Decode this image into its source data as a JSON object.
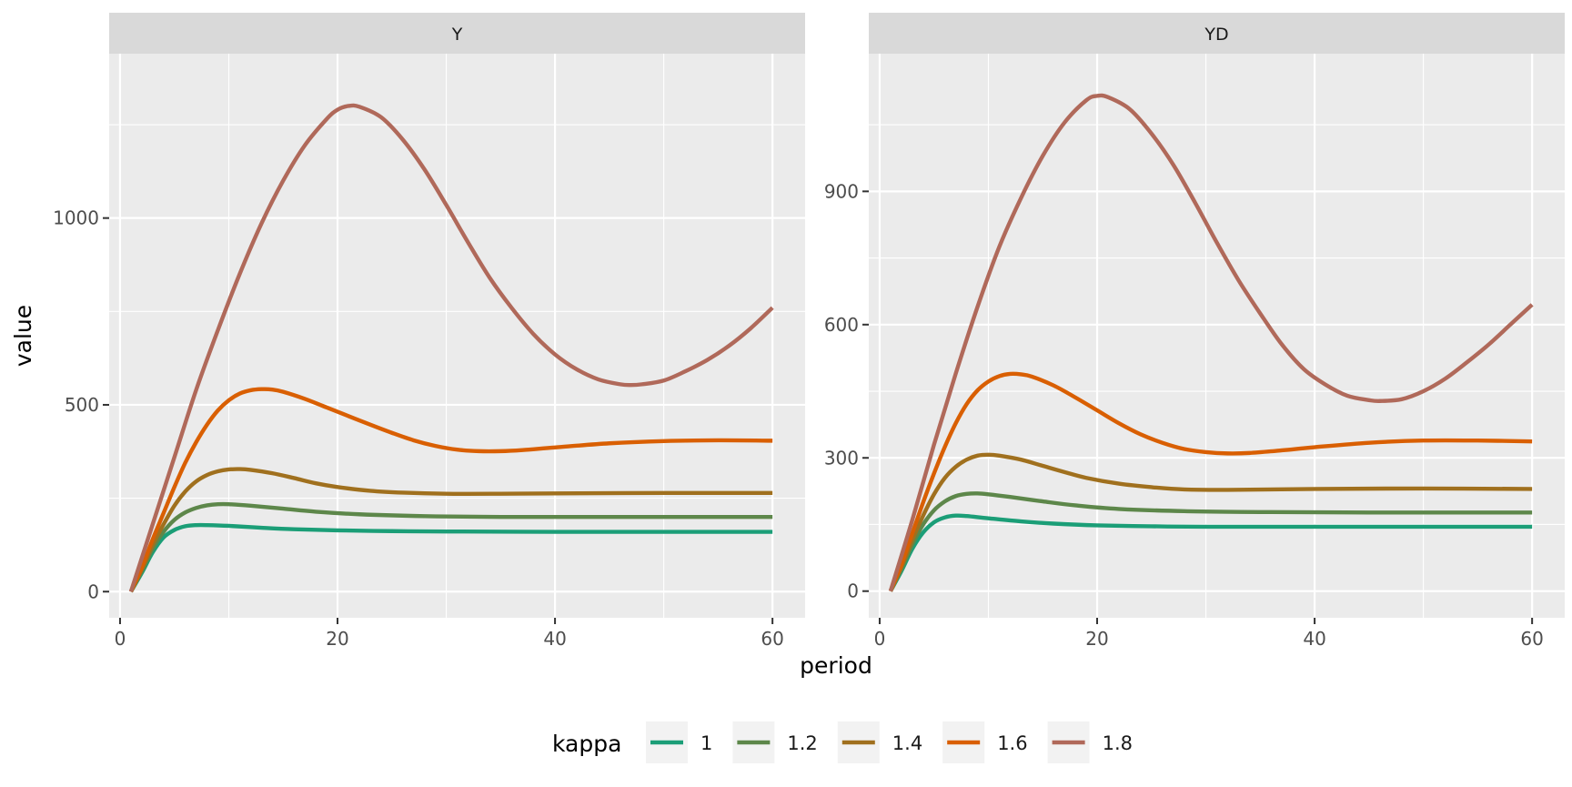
{
  "chart_data": {
    "type": "line",
    "xlabel": "period",
    "ylabel": "value",
    "legend": {
      "title": "kappa",
      "position": "bottom"
    },
    "colors": {
      "1": "#1b9e77",
      "1.2": "#5d874a",
      "1.4": "#a0701e",
      "1.6": "#d95f02",
      "1.8": "#b0695a"
    },
    "series_names": [
      "1",
      "1.2",
      "1.4",
      "1.6",
      "1.8"
    ],
    "panels": [
      {
        "strip": "Y",
        "xlim": [
          -1,
          63
        ],
        "ylim": [
          -70,
          1440
        ],
        "xticks": [
          0,
          20,
          40,
          60
        ],
        "yticks": [
          0,
          500,
          1000
        ],
        "series": [
          {
            "name": "1",
            "points": [
              [
                1,
                0
              ],
              [
                2,
                50
              ],
              [
                3,
                105
              ],
              [
                4,
                145
              ],
              [
                5,
                165
              ],
              [
                6,
                175
              ],
              [
                7,
                178
              ],
              [
                8,
                178
              ],
              [
                10,
                176
              ],
              [
                13,
                171
              ],
              [
                16,
                167
              ],
              [
                20,
                164
              ],
              [
                25,
                162
              ],
              [
                30,
                161
              ],
              [
                40,
                160
              ],
              [
                50,
                160
              ],
              [
                60,
                160
              ]
            ]
          },
          {
            "name": "1.2",
            "points": [
              [
                1,
                0
              ],
              [
                2,
                55
              ],
              [
                3,
                115
              ],
              [
                4,
                160
              ],
              [
                5,
                192
              ],
              [
                6,
                212
              ],
              [
                7,
                224
              ],
              [
                8,
                231
              ],
              [
                9,
                234
              ],
              [
                10,
                234
              ],
              [
                12,
                230
              ],
              [
                15,
                222
              ],
              [
                18,
                214
              ],
              [
                22,
                207
              ],
              [
                28,
                202
              ],
              [
                35,
                200
              ],
              [
                45,
                200
              ],
              [
                60,
                200
              ]
            ]
          },
          {
            "name": "1.4",
            "points": [
              [
                1,
                0
              ],
              [
                2,
                60
              ],
              [
                3,
                125
              ],
              [
                4,
                180
              ],
              [
                5,
                230
              ],
              [
                6,
                268
              ],
              [
                7,
                295
              ],
              [
                8,
                312
              ],
              [
                9,
                322
              ],
              [
                10,
                327
              ],
              [
                11,
                328
              ],
              [
                12,
                326
              ],
              [
                14,
                317
              ],
              [
                16,
                304
              ],
              [
                18,
                290
              ],
              [
                20,
                280
              ],
              [
                23,
                270
              ],
              [
                26,
                265
              ],
              [
                30,
                262
              ],
              [
                35,
                262
              ],
              [
                40,
                263
              ],
              [
                50,
                264
              ],
              [
                60,
                264
              ]
            ]
          },
          {
            "name": "1.6",
            "points": [
              [
                1,
                0
              ],
              [
                2,
                65
              ],
              [
                3,
                140
              ],
              [
                4,
                210
              ],
              [
                5,
                280
              ],
              [
                6,
                345
              ],
              [
                7,
                400
              ],
              [
                8,
                447
              ],
              [
                9,
                485
              ],
              [
                10,
                512
              ],
              [
                11,
                530
              ],
              [
                12,
                539
              ],
              [
                13,
                542
              ],
              [
                14,
                541
              ],
              [
                15,
                535
              ],
              [
                17,
                516
              ],
              [
                19,
                493
              ],
              [
                21,
                470
              ],
              [
                23,
                447
              ],
              [
                25,
                425
              ],
              [
                27,
                405
              ],
              [
                29,
                390
              ],
              [
                31,
                380
              ],
              [
                33,
                376
              ],
              [
                35,
                376
              ],
              [
                37,
                379
              ],
              [
                40,
                386
              ],
              [
                45,
                397
              ],
              [
                50,
                403
              ],
              [
                55,
                405
              ],
              [
                60,
                404
              ]
            ]
          },
          {
            "name": "1.8",
            "points": [
              [
                1,
                0
              ],
              [
                3,
                180
              ],
              [
                5,
                360
              ],
              [
                7,
                540
              ],
              [
                9,
                700
              ],
              [
                11,
                850
              ],
              [
                13,
                985
              ],
              [
                15,
                1100
              ],
              [
                17,
                1195
              ],
              [
                19,
                1265
              ],
              [
                20,
                1290
              ],
              [
                21,
                1300
              ],
              [
                22,
                1298
              ],
              [
                24,
                1270
              ],
              [
                26,
                1210
              ],
              [
                28,
                1130
              ],
              [
                30,
                1035
              ],
              [
                32,
                935
              ],
              [
                34,
                840
              ],
              [
                36,
                760
              ],
              [
                38,
                690
              ],
              [
                40,
                635
              ],
              [
                42,
                595
              ],
              [
                44,
                568
              ],
              [
                46,
                555
              ],
              [
                47,
                553
              ],
              [
                48,
                555
              ],
              [
                50,
                565
              ],
              [
                52,
                590
              ],
              [
                54,
                620
              ],
              [
                56,
                658
              ],
              [
                58,
                705
              ],
              [
                60,
                760
              ]
            ]
          }
        ]
      },
      {
        "strip": "YD",
        "xlim": [
          -1,
          63
        ],
        "ylim": [
          -60,
          1210
        ],
        "xticks": [
          0,
          20,
          40,
          60
        ],
        "yticks": [
          0,
          300,
          600,
          900
        ],
        "series": [
          {
            "name": "1",
            "points": [
              [
                1,
                0
              ],
              [
                2,
                45
              ],
              [
                3,
                95
              ],
              [
                4,
                132
              ],
              [
                5,
                155
              ],
              [
                6,
                166
              ],
              [
                7,
                170
              ],
              [
                8,
                169
              ],
              [
                10,
                164
              ],
              [
                13,
                157
              ],
              [
                16,
                152
              ],
              [
                20,
                148
              ],
              [
                25,
                146
              ],
              [
                30,
                145
              ],
              [
                40,
                145
              ],
              [
                50,
                145
              ],
              [
                60,
                145
              ]
            ]
          },
          {
            "name": "1.2",
            "points": [
              [
                1,
                0
              ],
              [
                2,
                50
              ],
              [
                3,
                105
              ],
              [
                4,
                150
              ],
              [
                5,
                182
              ],
              [
                6,
                202
              ],
              [
                7,
                214
              ],
              [
                8,
                219
              ],
              [
                9,
                220
              ],
              [
                10,
                218
              ],
              [
                12,
                212
              ],
              [
                15,
                202
              ],
              [
                18,
                193
              ],
              [
                22,
                185
              ],
              [
                28,
                180
              ],
              [
                35,
                178
              ],
              [
                45,
                177
              ],
              [
                60,
                177
              ]
            ]
          },
          {
            "name": "1.4",
            "points": [
              [
                1,
                0
              ],
              [
                2,
                55
              ],
              [
                3,
                115
              ],
              [
                4,
                170
              ],
              [
                5,
                218
              ],
              [
                6,
                255
              ],
              [
                7,
                280
              ],
              [
                8,
                296
              ],
              [
                9,
                305
              ],
              [
                10,
                307
              ],
              [
                11,
                305
              ],
              [
                13,
                296
              ],
              [
                15,
                282
              ],
              [
                17,
                268
              ],
              [
                19,
                255
              ],
              [
                22,
                242
              ],
              [
                25,
                234
              ],
              [
                28,
                229
              ],
              [
                32,
                228
              ],
              [
                40,
                230
              ],
              [
                50,
                231
              ],
              [
                60,
                230
              ]
            ]
          },
          {
            "name": "1.6",
            "points": [
              [
                1,
                0
              ],
              [
                2,
                60
              ],
              [
                3,
                130
              ],
              [
                4,
                200
              ],
              [
                5,
                265
              ],
              [
                6,
                325
              ],
              [
                7,
                378
              ],
              [
                8,
                421
              ],
              [
                9,
                452
              ],
              [
                10,
                472
              ],
              [
                11,
                484
              ],
              [
                12,
                489
              ],
              [
                13,
                488
              ],
              [
                14,
                483
              ],
              [
                16,
                463
              ],
              [
                18,
                436
              ],
              [
                20,
                407
              ],
              [
                22,
                378
              ],
              [
                24,
                353
              ],
              [
                26,
                334
              ],
              [
                28,
                320
              ],
              [
                30,
                313
              ],
              [
                32,
                310
              ],
              [
                34,
                311
              ],
              [
                37,
                317
              ],
              [
                40,
                324
              ],
              [
                45,
                334
              ],
              [
                50,
                339
              ],
              [
                55,
                339
              ],
              [
                60,
                337
              ]
            ]
          },
          {
            "name": "1.8",
            "points": [
              [
                1,
                0
              ],
              [
                3,
                160
              ],
              [
                5,
                330
              ],
              [
                7,
                490
              ],
              [
                9,
                640
              ],
              [
                11,
                775
              ],
              [
                13,
                885
              ],
              [
                15,
                980
              ],
              [
                17,
                1055
              ],
              [
                19,
                1105
              ],
              [
                20,
                1115
              ],
              [
                21,
                1112
              ],
              [
                23,
                1085
              ],
              [
                25,
                1030
              ],
              [
                27,
                960
              ],
              [
                29,
                875
              ],
              [
                31,
                785
              ],
              [
                33,
                700
              ],
              [
                35,
                625
              ],
              [
                37,
                555
              ],
              [
                39,
                500
              ],
              [
                41,
                465
              ],
              [
                43,
                440
              ],
              [
                45,
                430
              ],
              [
                46,
                428
              ],
              [
                48,
                432
              ],
              [
                50,
                450
              ],
              [
                52,
                478
              ],
              [
                54,
                515
              ],
              [
                56,
                555
              ],
              [
                58,
                600
              ],
              [
                60,
                645
              ]
            ]
          }
        ]
      }
    ]
  }
}
